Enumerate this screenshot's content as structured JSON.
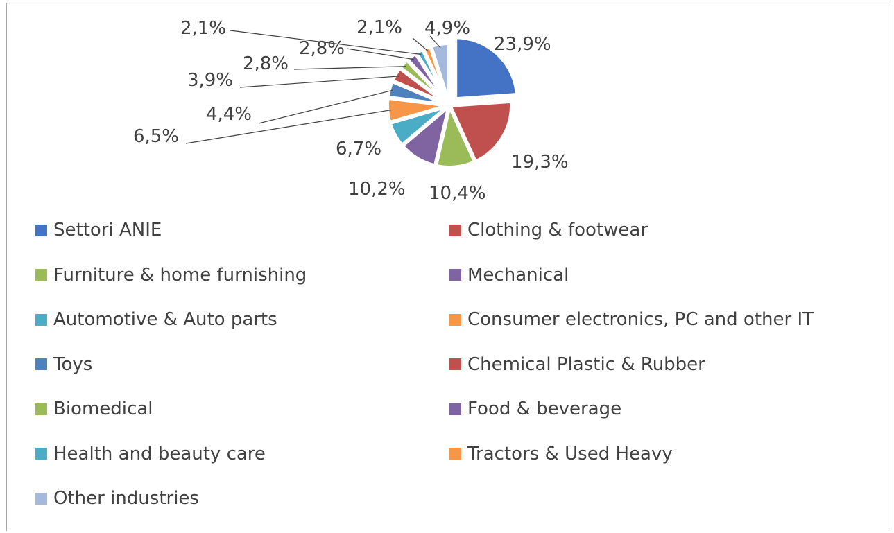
{
  "chart_data": {
    "type": "pie",
    "title": "",
    "categories": [
      "Settori ANIE",
      "Clothing & footwear",
      "Furniture & home furnishing",
      "Mechanical",
      "Automotive & Auto parts",
      "Consumer electronics, PC and other IT",
      "Toys",
      "Chemical Plastic & Rubber",
      "Biomedical",
      "Food & beverage",
      "Health and beauty care",
      "Tractors & Used Heavy",
      "Other industries"
    ],
    "values": [
      23.9,
      19.3,
      10.4,
      10.2,
      6.7,
      6.5,
      4.4,
      3.9,
      2.8,
      2.8,
      2.1,
      2.1,
      4.9
    ],
    "data_labels": [
      "23,9%",
      "19,3%",
      "10,4%",
      "10,2%",
      "6,7%",
      "6,5%",
      "4,4%",
      "3,9%",
      "2,8%",
      "2,8%",
      "2,1%",
      "2,1%",
      "4,9%"
    ],
    "colors": [
      "#4472c4",
      "#c0504d",
      "#9bbb59",
      "#8064a2",
      "#4bacc6",
      "#f79646",
      "#4f81bd",
      "#c0504d",
      "#9bbb59",
      "#8064a2",
      "#4bacc6",
      "#f79646",
      "#a5b9dc"
    ],
    "exploded": "first slice",
    "legend_position": "bottom",
    "legend_columns": 2
  }
}
